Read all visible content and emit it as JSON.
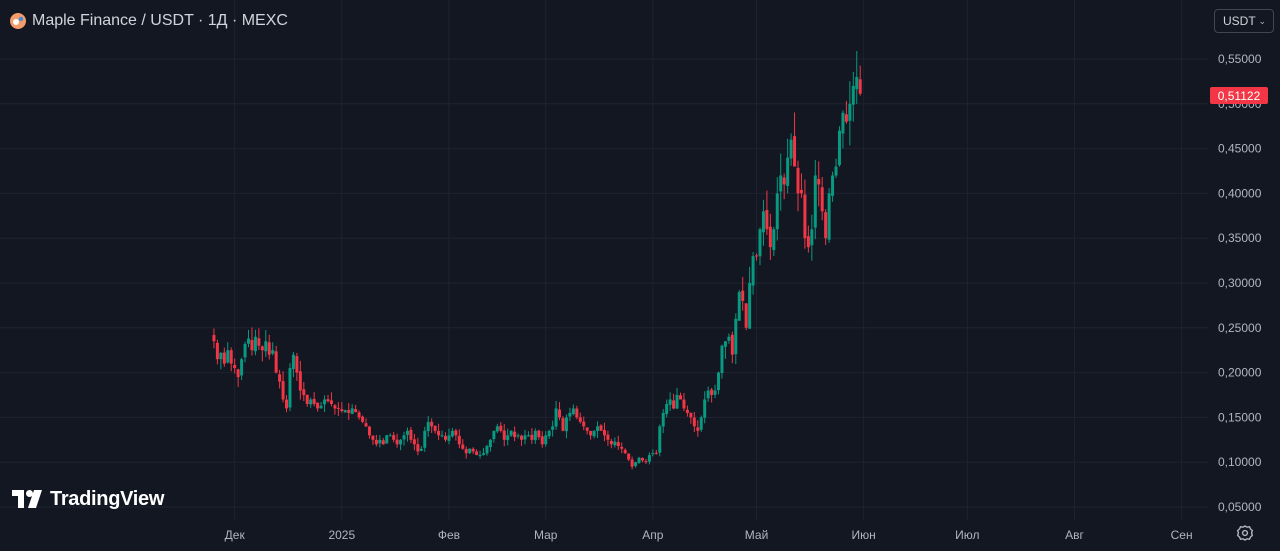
{
  "header": {
    "symbol_title": "Maple Finance / USDT · 1Д · MEXC"
  },
  "currency_selector": {
    "label": "USDT"
  },
  "last_price": {
    "label": "0,51122",
    "value": 0.51122
  },
  "logo": {
    "text": "TradingView"
  },
  "colors": {
    "background": "#131722",
    "grid": "#1f2330",
    "up": "#089981",
    "down": "#f23645",
    "text": "#b2b5be"
  },
  "icons": {
    "symbol": "maple-logo-icon",
    "settings": "gear-icon"
  },
  "chart_data": {
    "type": "candlestick",
    "interval": "1Д",
    "exchange": "MEXC",
    "ylim": [
      0.03,
      0.58
    ],
    "y_ticks": [
      0.05,
      0.1,
      0.15,
      0.2,
      0.25,
      0.3,
      0.35,
      0.4,
      0.45,
      0.5,
      0.55
    ],
    "y_tick_labels": [
      "0,05000",
      "0,10000",
      "0,15000",
      "0,20000",
      "0,25000",
      "0,30000",
      "0,35000",
      "0,40000",
      "0,45000",
      "0,50000",
      "0,55000"
    ],
    "x_range": [
      "2024-11-01",
      "2025-09-15"
    ],
    "x_ticks": [
      {
        "label": "Дек",
        "date": "2024-12-01"
      },
      {
        "label": "2025",
        "date": "2025-01-01"
      },
      {
        "label": "Фев",
        "date": "2025-02-01"
      },
      {
        "label": "Мар",
        "date": "2025-03-01"
      },
      {
        "label": "Апр",
        "date": "2025-04-01"
      },
      {
        "label": "Май",
        "date": "2025-05-01"
      },
      {
        "label": "Июн",
        "date": "2025-06-01"
      },
      {
        "label": "Июл",
        "date": "2025-07-01"
      },
      {
        "label": "Авг",
        "date": "2025-08-01"
      },
      {
        "label": "Сен",
        "date": "2025-09-01"
      }
    ],
    "grid": true,
    "closes": [
      0.235,
      0.215,
      0.222,
      0.21,
      0.225,
      0.21,
      0.205,
      0.195,
      0.215,
      0.232,
      0.238,
      0.225,
      0.24,
      0.23,
      0.225,
      0.235,
      0.22,
      0.225,
      0.2,
      0.19,
      0.17,
      0.16,
      0.205,
      0.22,
      0.2,
      0.18,
      0.175,
      0.165,
      0.17,
      0.165,
      0.16,
      0.163,
      0.17,
      0.168,
      0.165,
      0.16,
      0.16,
      0.157,
      0.158,
      0.155,
      0.16,
      0.156,
      0.15,
      0.145,
      0.14,
      0.13,
      0.125,
      0.12,
      0.125,
      0.12,
      0.13,
      0.13,
      0.125,
      0.12,
      0.125,
      0.13,
      0.135,
      0.125,
      0.12,
      0.112,
      0.115,
      0.135,
      0.145,
      0.14,
      0.135,
      0.13,
      0.13,
      0.125,
      0.13,
      0.135,
      0.13,
      0.12,
      0.115,
      0.11,
      0.115,
      0.112,
      0.108,
      0.108,
      0.11,
      0.118,
      0.125,
      0.135,
      0.14,
      0.135,
      0.125,
      0.13,
      0.135,
      0.128,
      0.13,
      0.125,
      0.13,
      0.13,
      0.125,
      0.135,
      0.128,
      0.12,
      0.13,
      0.135,
      0.14,
      0.16,
      0.15,
      0.135,
      0.15,
      0.155,
      0.16,
      0.15,
      0.145,
      0.14,
      0.135,
      0.13,
      0.135,
      0.14,
      0.135,
      0.13,
      0.125,
      0.12,
      0.123,
      0.118,
      0.115,
      0.11,
      0.103,
      0.095,
      0.1,
      0.105,
      0.102,
      0.1,
      0.108,
      0.11,
      0.11,
      0.14,
      0.155,
      0.165,
      0.17,
      0.16,
      0.175,
      0.17,
      0.16,
      0.155,
      0.15,
      0.14,
      0.135,
      0.15,
      0.17,
      0.18,
      0.175,
      0.18,
      0.2,
      0.23,
      0.235,
      0.24,
      0.22,
      0.26,
      0.29,
      0.28,
      0.25,
      0.3,
      0.33,
      0.33,
      0.36,
      0.38,
      0.36,
      0.34,
      0.36,
      0.4,
      0.42,
      0.41,
      0.44,
      0.46,
      0.43,
      0.4,
      0.4,
      0.35,
      0.34,
      0.36,
      0.42,
      0.41,
      0.38,
      0.35,
      0.4,
      0.42,
      0.43,
      0.47,
      0.49,
      0.48,
      0.5,
      0.52,
      0.53,
      0.51122
    ]
  }
}
